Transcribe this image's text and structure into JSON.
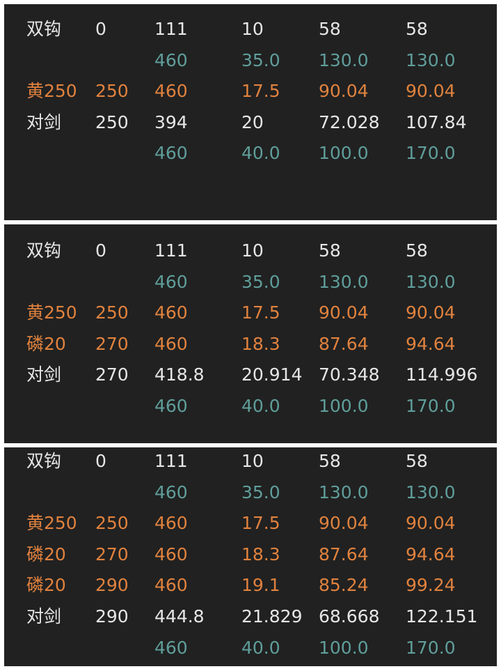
{
  "panels": [
    {
      "rows": [
        {
          "tone": "white",
          "cells": [
            "双钩",
            "0",
            "111",
            "10",
            "58",
            "58"
          ]
        },
        {
          "tone": "teal",
          "cells": [
            null,
            null,
            "460",
            "35.0",
            "130.0",
            "130.0"
          ]
        },
        {
          "tone": "orange",
          "cells": [
            "黄250",
            "250",
            "460",
            "17.5",
            "90.04",
            "90.04"
          ]
        },
        {
          "tone": "white",
          "cells": [
            "对剑",
            "250",
            "394",
            "20",
            "72.028",
            "107.84"
          ]
        },
        {
          "tone": "teal",
          "cells": [
            null,
            null,
            "460",
            "40.0",
            "100.0",
            "170.0"
          ]
        }
      ]
    },
    {
      "rows": [
        {
          "tone": "white",
          "cells": [
            "双钩",
            "0",
            "111",
            "10",
            "58",
            "58"
          ]
        },
        {
          "tone": "teal",
          "cells": [
            null,
            null,
            "460",
            "35.0",
            "130.0",
            "130.0"
          ]
        },
        {
          "tone": "orange",
          "cells": [
            "黄250",
            "250",
            "460",
            "17.5",
            "90.04",
            "90.04"
          ]
        },
        {
          "tone": "orange",
          "cells": [
            "磷20",
            "270",
            "460",
            "18.3",
            "87.64",
            "94.64"
          ]
        },
        {
          "tone": "white",
          "cells": [
            "对剑",
            "270",
            "418.8",
            "20.914",
            "70.348",
            "114.996"
          ]
        },
        {
          "tone": "teal",
          "cells": [
            null,
            null,
            "460",
            "40.0",
            "100.0",
            "170.0"
          ]
        }
      ]
    },
    {
      "rows": [
        {
          "tone": "white",
          "cells": [
            "双钩",
            "0",
            "111",
            "10",
            "58",
            "58"
          ]
        },
        {
          "tone": "teal",
          "cells": [
            null,
            null,
            "460",
            "35.0",
            "130.0",
            "130.0"
          ]
        },
        {
          "tone": "orange",
          "cells": [
            "黄250",
            "250",
            "460",
            "17.5",
            "90.04",
            "90.04"
          ]
        },
        {
          "tone": "orange",
          "cells": [
            "磷20",
            "270",
            "460",
            "18.3",
            "87.64",
            "94.64"
          ]
        },
        {
          "tone": "orange",
          "cells": [
            "磷20",
            "290",
            "460",
            "19.1",
            "85.24",
            "99.24"
          ]
        },
        {
          "tone": "white",
          "cells": [
            "对剑",
            "290",
            "444.8",
            "21.829",
            "68.668",
            "122.151"
          ]
        },
        {
          "tone": "teal",
          "cells": [
            null,
            null,
            "460",
            "40.0",
            "100.0",
            "170.0"
          ]
        }
      ]
    }
  ]
}
